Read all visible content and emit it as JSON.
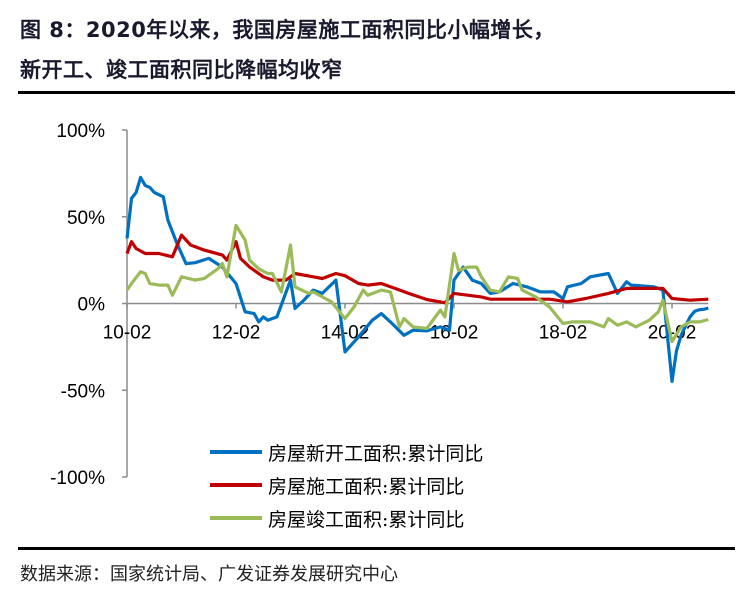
{
  "title": {
    "line1": "图 8：2020年以来，我国房屋施工面积同比小幅增长，",
    "line2": "新开工、竣工面积同比降幅均收窄"
  },
  "source": "数据来源：国家统计局、广发证券发展研究中心",
  "chart_data": {
    "type": "line",
    "title": "图 8：2020年以来，我国房屋施工面积同比小幅增长，新开工、竣工面积同比降幅均收窄",
    "xlabel": "",
    "ylabel": "",
    "ylim": [
      -100,
      100
    ],
    "xlim": [
      "2010-02",
      "2020-10"
    ],
    "y_ticks": [
      "100%",
      "50%",
      "0%",
      "-50%",
      "-100%"
    ],
    "y_tick_values": [
      100,
      50,
      0,
      -50,
      -100
    ],
    "x_ticks": [
      "10-02",
      "12-02",
      "14-02",
      "16-02",
      "18-02",
      "20-02"
    ],
    "x_tick_values": [
      "2010-02",
      "2012-02",
      "2014-02",
      "2016-02",
      "2018-02",
      "2020-02"
    ],
    "grid": false,
    "legend_position": "bottom-center",
    "series": [
      {
        "name": "房屋新开工面积:累计同比",
        "color": "#0070C0",
        "points": [
          [
            "2010-02",
            37.5
          ],
          [
            "2010-03",
            60.6
          ],
          [
            "2010-04",
            64
          ],
          [
            "2010-05",
            72.7
          ],
          [
            "2010-06",
            68
          ],
          [
            "2010-07",
            67
          ],
          [
            "2010-08",
            64
          ],
          [
            "2010-10",
            61.5
          ],
          [
            "2010-11",
            48
          ],
          [
            "2011-01",
            34.6
          ],
          [
            "2011-03",
            23
          ],
          [
            "2011-05",
            23.5
          ],
          [
            "2011-08",
            26
          ],
          [
            "2011-11",
            21
          ],
          [
            "2012-02",
            11.5
          ],
          [
            "2012-04",
            -4.8
          ],
          [
            "2012-06",
            -5.8
          ],
          [
            "2012-07",
            -10.6
          ],
          [
            "2012-08",
            -7.7
          ],
          [
            "2012-09",
            -9.6
          ],
          [
            "2012-11",
            -7.7
          ],
          [
            "2013-02",
            13.5
          ],
          [
            "2013-03",
            -2.9
          ],
          [
            "2013-05",
            2
          ],
          [
            "2013-07",
            7.7
          ],
          [
            "2013-09",
            5.8
          ],
          [
            "2013-12",
            13.5
          ],
          [
            "2014-02",
            -27.9
          ],
          [
            "2014-05",
            -19.2
          ],
          [
            "2014-08",
            -9.6
          ],
          [
            "2014-10",
            -5.8
          ],
          [
            "2014-12",
            -10.6
          ],
          [
            "2015-03",
            -18.3
          ],
          [
            "2015-05",
            -15.4
          ],
          [
            "2015-08",
            -15.8
          ],
          [
            "2015-11",
            -13.5
          ],
          [
            "2016-01",
            -15.4
          ],
          [
            "2016-02",
            13.5
          ],
          [
            "2016-04",
            21
          ],
          [
            "2016-06",
            13.5
          ],
          [
            "2016-08",
            11.5
          ],
          [
            "2016-10",
            5.8
          ],
          [
            "2016-12",
            6.7
          ],
          [
            "2017-03",
            11.5
          ],
          [
            "2017-06",
            9.6
          ],
          [
            "2017-09",
            6.7
          ],
          [
            "2017-12",
            6.7
          ],
          [
            "2018-02",
            2.9
          ],
          [
            "2018-03",
            9.6
          ],
          [
            "2018-06",
            11.5
          ],
          [
            "2018-08",
            15.4
          ],
          [
            "2018-12",
            17.3
          ],
          [
            "2019-02",
            5.8
          ],
          [
            "2019-04",
            12.5
          ],
          [
            "2019-05",
            10.6
          ],
          [
            "2019-10",
            9.6
          ],
          [
            "2019-12",
            7.7
          ],
          [
            "2020-02",
            -44.9
          ],
          [
            "2020-03",
            -27.2
          ],
          [
            "2020-04",
            -18.4
          ],
          [
            "2020-05",
            -12.8
          ],
          [
            "2020-06",
            -7.6
          ],
          [
            "2020-07",
            -4.5
          ],
          [
            "2020-08",
            -3.6
          ],
          [
            "2020-09",
            -3.4
          ],
          [
            "2020-10",
            -2.6
          ]
        ]
      },
      {
        "name": "房屋施工面积:累计同比",
        "color": "#C00000",
        "points": [
          [
            "2010-02",
            28.8
          ],
          [
            "2010-03",
            35.6
          ],
          [
            "2010-04",
            31.7
          ],
          [
            "2010-06",
            28.8
          ],
          [
            "2010-09",
            28.8
          ],
          [
            "2010-12",
            26.9
          ],
          [
            "2011-02",
            39.4
          ],
          [
            "2011-04",
            33.7
          ],
          [
            "2011-07",
            30.8
          ],
          [
            "2011-11",
            27.9
          ],
          [
            "2011-12",
            25
          ],
          [
            "2012-02",
            35.6
          ],
          [
            "2012-03",
            26
          ],
          [
            "2012-05",
            21
          ],
          [
            "2012-08",
            15.4
          ],
          [
            "2012-10",
            13.5
          ],
          [
            "2013-01",
            13.5
          ],
          [
            "2013-03",
            17.3
          ],
          [
            "2013-07",
            15.4
          ],
          [
            "2013-09",
            14.4
          ],
          [
            "2013-12",
            17.3
          ],
          [
            "2014-02",
            16
          ],
          [
            "2014-05",
            11.5
          ],
          [
            "2014-07",
            10.6
          ],
          [
            "2014-10",
            11.5
          ],
          [
            "2015-01",
            8.7
          ],
          [
            "2015-04",
            5.8
          ],
          [
            "2015-08",
            2.3
          ],
          [
            "2015-12",
            0.4
          ],
          [
            "2016-02",
            5.8
          ],
          [
            "2016-08",
            3.8
          ],
          [
            "2016-10",
            2.5
          ],
          [
            "2017-05",
            2.5
          ],
          [
            "2017-11",
            2.5
          ],
          [
            "2018-03",
            1
          ],
          [
            "2018-07",
            2.9
          ],
          [
            "2018-12",
            5.8
          ],
          [
            "2019-04",
            8.7
          ],
          [
            "2019-12",
            8.7
          ],
          [
            "2020-02",
            2.9
          ],
          [
            "2020-06",
            1.9
          ],
          [
            "2020-10",
            2.5
          ]
        ]
      },
      {
        "name": "房屋竣工面积:累计同比",
        "color": "#9BBB59",
        "points": [
          [
            "2010-02",
            7.7
          ],
          [
            "2010-03",
            11.5
          ],
          [
            "2010-05",
            18.3
          ],
          [
            "2010-06",
            17.3
          ],
          [
            "2010-07",
            11.5
          ],
          [
            "2010-09",
            10.6
          ],
          [
            "2010-11",
            10.6
          ],
          [
            "2010-12",
            4.8
          ],
          [
            "2011-02",
            15.4
          ],
          [
            "2011-05",
            13.5
          ],
          [
            "2011-07",
            14.4
          ],
          [
            "2011-10",
            20
          ],
          [
            "2011-11",
            23
          ],
          [
            "2011-12",
            15.4
          ],
          [
            "2012-02",
            45
          ],
          [
            "2012-04",
            36.5
          ],
          [
            "2012-05",
            25
          ],
          [
            "2012-07",
            20
          ],
          [
            "2012-09",
            17.3
          ],
          [
            "2012-10",
            17.3
          ],
          [
            "2012-12",
            6.7
          ],
          [
            "2013-02",
            33.7
          ],
          [
            "2013-03",
            9.6
          ],
          [
            "2013-06",
            5.8
          ],
          [
            "2013-07",
            6.7
          ],
          [
            "2013-09",
            3.8
          ],
          [
            "2013-11",
            1
          ],
          [
            "2014-02",
            -8.7
          ],
          [
            "2014-04",
            -1.9
          ],
          [
            "2014-06",
            7.7
          ],
          [
            "2014-07",
            4.8
          ],
          [
            "2014-10",
            7.7
          ],
          [
            "2014-12",
            6.7
          ],
          [
            "2015-02",
            -13.5
          ],
          [
            "2015-03",
            -8.7
          ],
          [
            "2015-05",
            -13.5
          ],
          [
            "2015-08",
            -14.4
          ],
          [
            "2015-11",
            -3.8
          ],
          [
            "2015-12",
            -7.7
          ],
          [
            "2016-02",
            28.8
          ],
          [
            "2016-03",
            19
          ],
          [
            "2016-05",
            21
          ],
          [
            "2016-07",
            21
          ],
          [
            "2016-08",
            15.4
          ],
          [
            "2016-10",
            7.7
          ],
          [
            "2016-12",
            6.7
          ],
          [
            "2017-02",
            15.4
          ],
          [
            "2017-04",
            14.4
          ],
          [
            "2017-05",
            7.7
          ],
          [
            "2017-08",
            3.8
          ],
          [
            "2017-11",
            -1.9
          ],
          [
            "2018-02",
            -11.5
          ],
          [
            "2018-04",
            -10.6
          ],
          [
            "2018-08",
            -10.6
          ],
          [
            "2018-11",
            -13.5
          ],
          [
            "2018-12",
            -8.7
          ],
          [
            "2019-02",
            -12.5
          ],
          [
            "2019-04",
            -10.6
          ],
          [
            "2019-06",
            -13.5
          ],
          [
            "2019-09",
            -9.6
          ],
          [
            "2019-11",
            -4.8
          ],
          [
            "2019-12",
            1.9
          ],
          [
            "2020-02",
            -22
          ],
          [
            "2020-04",
            -13.5
          ],
          [
            "2020-06",
            -10.6
          ],
          [
            "2020-08",
            -10.6
          ],
          [
            "2020-10",
            -9.2
          ]
        ]
      }
    ]
  }
}
